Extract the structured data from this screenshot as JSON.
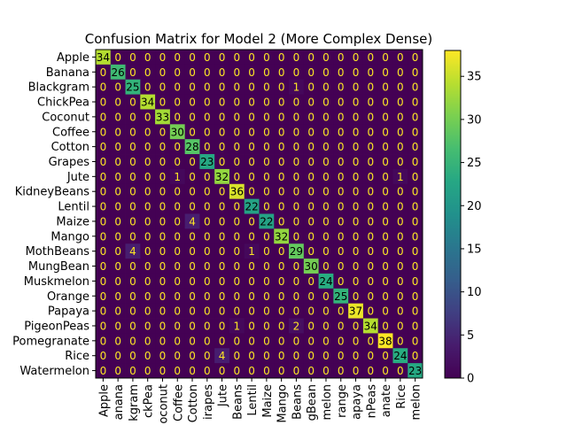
{
  "chart_data": {
    "type": "heatmap",
    "title": "Confusion Matrix for Model 2 (More Complex Dense)",
    "xlabel": "",
    "ylabel": "",
    "labels": [
      "Apple",
      "Banana",
      "Blackgram",
      "ChickPea",
      "Coconut",
      "Coffee",
      "Cotton",
      "Grapes",
      "Jute",
      "KidneyBeans",
      "Lentil",
      "Maize",
      "Mango",
      "MothBeans",
      "MungBean",
      "Muskmelon",
      "Orange",
      "Papaya",
      "PigeonPeas",
      "Pomegranate",
      "Rice",
      "Watermelon"
    ],
    "x_tick_labels": [
      "Apple",
      "anana",
      "kgram",
      "ckPea",
      "oconut",
      "Coffee",
      "Cotton",
      "irapes",
      "Jute",
      "Beans",
      "Lentil",
      "Maize",
      "Mango",
      "Beans",
      "gBean",
      "melon",
      "range",
      "apaya",
      "nPeas",
      "anate",
      "Rice",
      "melon"
    ],
    "matrix": [
      [
        34,
        0,
        0,
        0,
        0,
        0,
        0,
        0,
        0,
        0,
        0,
        0,
        0,
        0,
        0,
        0,
        0,
        0,
        0,
        0,
        0,
        0
      ],
      [
        0,
        26,
        0,
        0,
        0,
        0,
        0,
        0,
        0,
        0,
        0,
        0,
        0,
        0,
        0,
        0,
        0,
        0,
        0,
        0,
        0,
        0
      ],
      [
        0,
        0,
        25,
        0,
        0,
        0,
        0,
        0,
        0,
        0,
        0,
        0,
        0,
        1,
        0,
        0,
        0,
        0,
        0,
        0,
        0,
        0
      ],
      [
        0,
        0,
        0,
        34,
        0,
        0,
        0,
        0,
        0,
        0,
        0,
        0,
        0,
        0,
        0,
        0,
        0,
        0,
        0,
        0,
        0,
        0
      ],
      [
        0,
        0,
        0,
        0,
        33,
        0,
        0,
        0,
        0,
        0,
        0,
        0,
        0,
        0,
        0,
        0,
        0,
        0,
        0,
        0,
        0,
        0
      ],
      [
        0,
        0,
        0,
        0,
        0,
        30,
        0,
        0,
        0,
        0,
        0,
        0,
        0,
        0,
        0,
        0,
        0,
        0,
        0,
        0,
        0,
        0
      ],
      [
        0,
        0,
        0,
        0,
        0,
        0,
        28,
        0,
        0,
        0,
        0,
        0,
        0,
        0,
        0,
        0,
        0,
        0,
        0,
        0,
        0,
        0
      ],
      [
        0,
        0,
        0,
        0,
        0,
        0,
        0,
        23,
        0,
        0,
        0,
        0,
        0,
        0,
        0,
        0,
        0,
        0,
        0,
        0,
        0,
        0
      ],
      [
        0,
        0,
        0,
        0,
        0,
        1,
        0,
        0,
        32,
        0,
        0,
        0,
        0,
        0,
        0,
        0,
        0,
        0,
        0,
        0,
        1,
        0
      ],
      [
        0,
        0,
        0,
        0,
        0,
        0,
        0,
        0,
        0,
        36,
        0,
        0,
        0,
        0,
        0,
        0,
        0,
        0,
        0,
        0,
        0,
        0
      ],
      [
        0,
        0,
        0,
        0,
        0,
        0,
        0,
        0,
        0,
        0,
        22,
        0,
        0,
        0,
        0,
        0,
        0,
        0,
        0,
        0,
        0,
        0
      ],
      [
        0,
        0,
        0,
        0,
        0,
        0,
        4,
        0,
        0,
        0,
        0,
        22,
        0,
        0,
        0,
        0,
        0,
        0,
        0,
        0,
        0,
        0
      ],
      [
        0,
        0,
        0,
        0,
        0,
        0,
        0,
        0,
        0,
        0,
        0,
        0,
        32,
        0,
        0,
        0,
        0,
        0,
        0,
        0,
        0,
        0
      ],
      [
        0,
        0,
        4,
        0,
        0,
        0,
        0,
        0,
        0,
        0,
        1,
        0,
        0,
        29,
        0,
        0,
        0,
        0,
        0,
        0,
        0,
        0
      ],
      [
        0,
        0,
        0,
        0,
        0,
        0,
        0,
        0,
        0,
        0,
        0,
        0,
        0,
        0,
        30,
        0,
        0,
        0,
        0,
        0,
        0,
        0
      ],
      [
        0,
        0,
        0,
        0,
        0,
        0,
        0,
        0,
        0,
        0,
        0,
        0,
        0,
        0,
        0,
        24,
        0,
        0,
        0,
        0,
        0,
        0
      ],
      [
        0,
        0,
        0,
        0,
        0,
        0,
        0,
        0,
        0,
        0,
        0,
        0,
        0,
        0,
        0,
        0,
        25,
        0,
        0,
        0,
        0,
        0
      ],
      [
        0,
        0,
        0,
        0,
        0,
        0,
        0,
        0,
        0,
        0,
        0,
        0,
        0,
        0,
        0,
        0,
        0,
        37,
        0,
        0,
        0,
        0
      ],
      [
        0,
        0,
        0,
        0,
        0,
        0,
        0,
        0,
        0,
        1,
        0,
        0,
        0,
        2,
        0,
        0,
        0,
        0,
        34,
        0,
        0,
        0
      ],
      [
        0,
        0,
        0,
        0,
        0,
        0,
        0,
        0,
        0,
        0,
        0,
        0,
        0,
        0,
        0,
        0,
        0,
        0,
        0,
        38,
        0,
        0
      ],
      [
        0,
        0,
        0,
        0,
        0,
        0,
        0,
        0,
        4,
        0,
        0,
        0,
        0,
        0,
        0,
        0,
        0,
        0,
        0,
        0,
        24,
        0
      ],
      [
        0,
        0,
        0,
        0,
        0,
        0,
        0,
        0,
        0,
        0,
        0,
        0,
        0,
        0,
        0,
        0,
        0,
        0,
        0,
        0,
        0,
        23
      ]
    ],
    "colormap": "viridis",
    "vmin": 0,
    "vmax": 38,
    "colorbar_ticks": [
      0,
      5,
      10,
      15,
      20,
      25,
      30,
      35
    ],
    "grid": false,
    "legend": "colorbar-right"
  }
}
